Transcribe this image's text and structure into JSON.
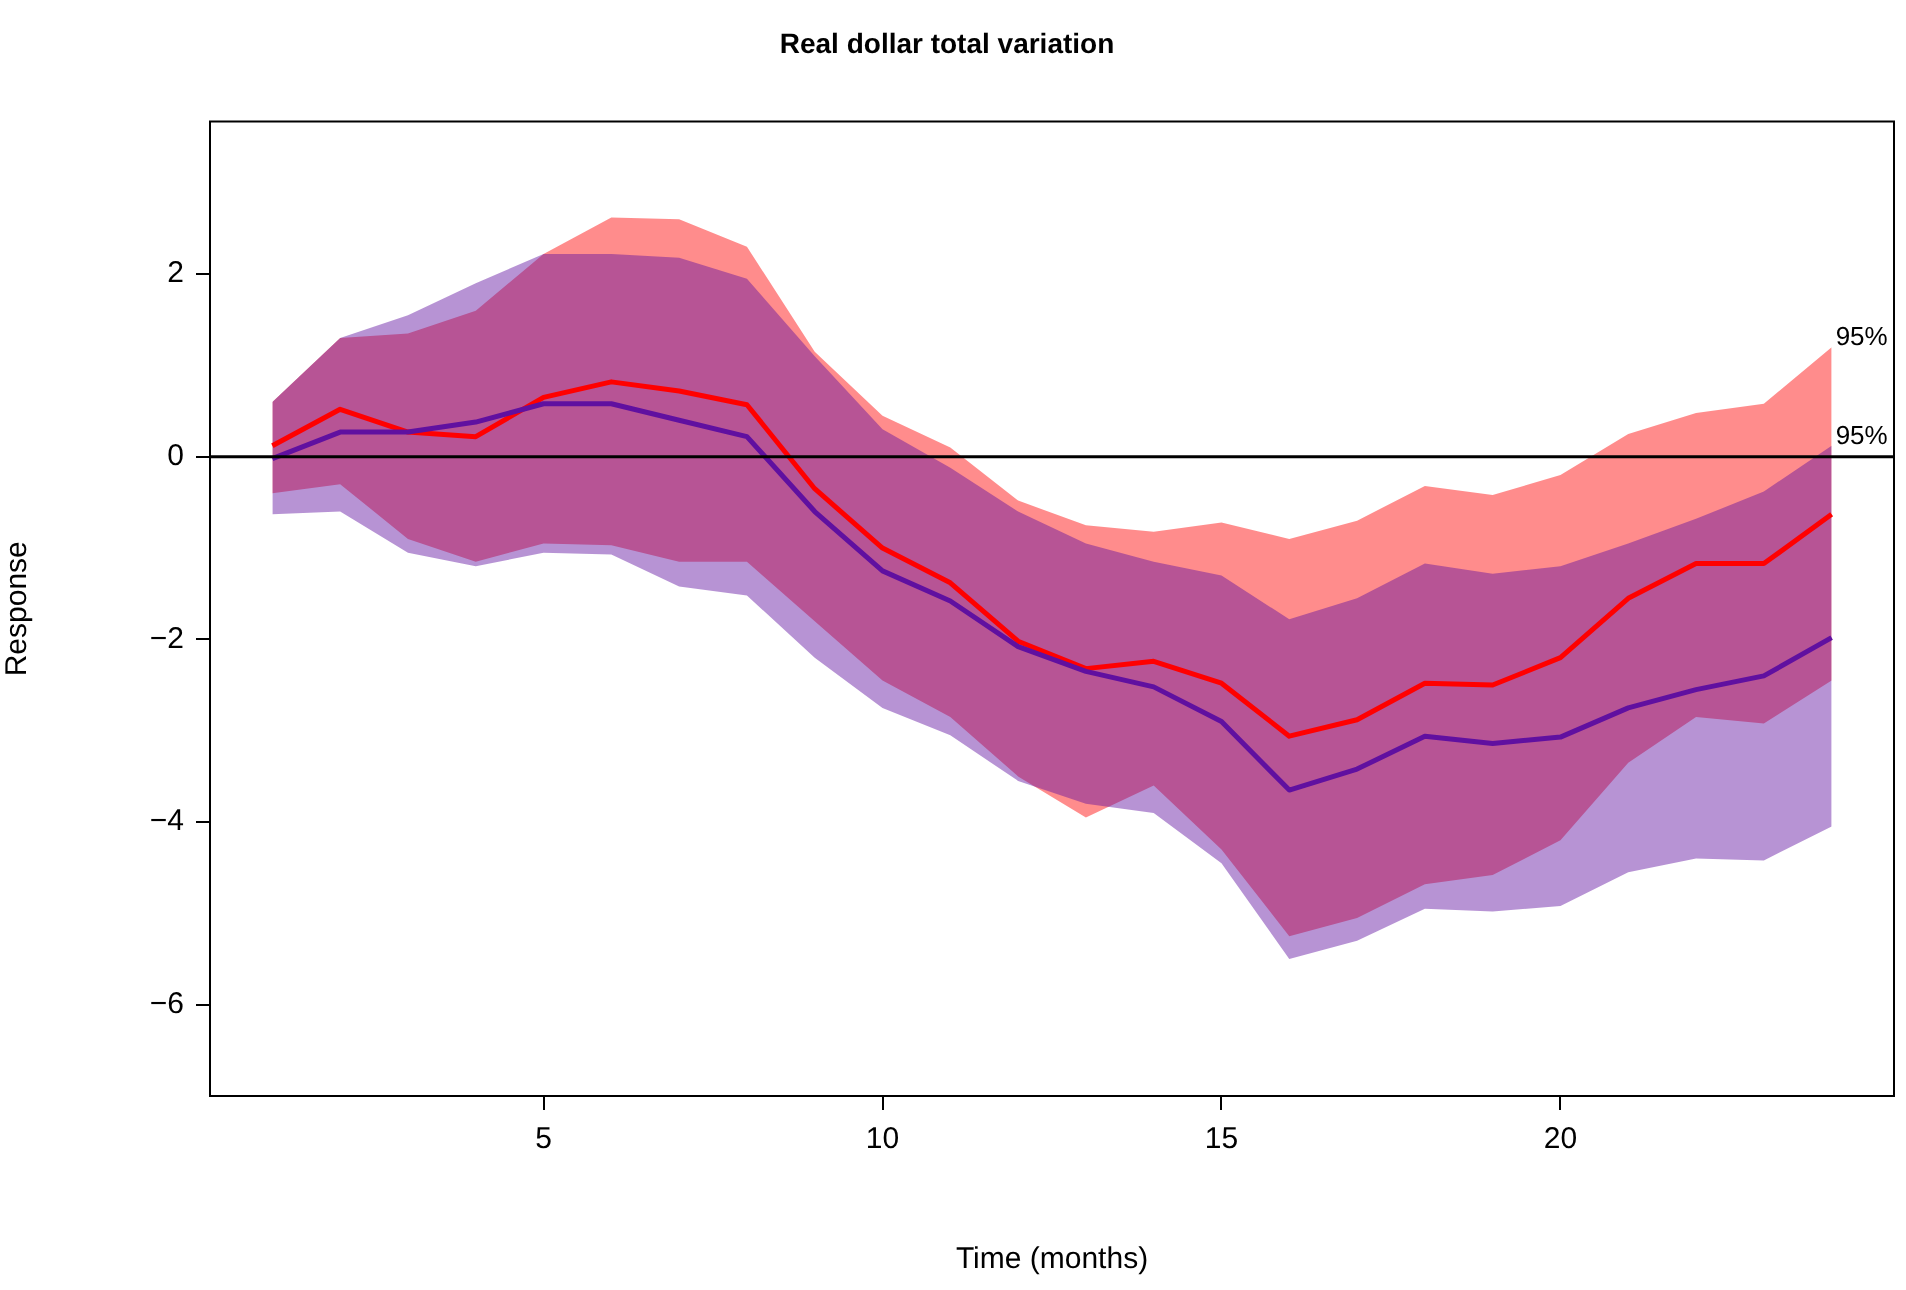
{
  "chart_data": {
    "type": "line",
    "title": "Real dollar total variation",
    "xlabel": "Time (months)",
    "ylabel": "Response",
    "x": [
      1,
      2,
      3,
      4,
      5,
      6,
      7,
      8,
      9,
      10,
      11,
      12,
      13,
      14,
      15,
      16,
      17,
      18,
      19,
      20,
      21,
      22,
      23,
      24
    ],
    "series": [
      {
        "color": "#6010a0",
        "values": [
          -0.02,
          0.27,
          0.27,
          0.38,
          0.58,
          0.58,
          0.4,
          0.22,
          -0.6,
          -1.25,
          -1.58,
          -2.08,
          -2.35,
          -2.52,
          -2.9,
          -3.65,
          -3.42,
          -3.06,
          -3.14,
          -3.07,
          -2.75,
          -2.55,
          -2.4,
          -1.98
        ],
        "lower": [
          -0.63,
          -0.6,
          -1.05,
          -1.2,
          -1.05,
          -1.07,
          -1.42,
          -1.52,
          -2.2,
          -2.75,
          -3.05,
          -3.55,
          -3.8,
          -3.9,
          -4.45,
          -5.5,
          -5.3,
          -4.95,
          -4.98,
          -4.92,
          -4.55,
          -4.4,
          -4.42,
          -4.05
        ],
        "upper": [
          0.6,
          1.3,
          1.55,
          1.9,
          2.22,
          2.22,
          2.18,
          1.95,
          1.1,
          0.3,
          -0.12,
          -0.6,
          -0.95,
          -1.15,
          -1.3,
          -1.78,
          -1.55,
          -1.17,
          -1.28,
          -1.2,
          -0.95,
          -0.68,
          -0.38,
          0.12
        ]
      },
      {
        "color": "#ff0000",
        "values": [
          0.12,
          0.52,
          0.27,
          0.22,
          0.65,
          0.82,
          0.72,
          0.57,
          -0.35,
          -1.0,
          -1.38,
          -2.02,
          -2.32,
          -2.24,
          -2.48,
          -3.06,
          -2.88,
          -2.48,
          -2.5,
          -2.2,
          -1.55,
          -1.17,
          -1.17,
          -0.63
        ],
        "lower": [
          -0.4,
          -0.3,
          -0.9,
          -1.15,
          -0.95,
          -0.97,
          -1.15,
          -1.15,
          -1.8,
          -2.45,
          -2.85,
          -3.5,
          -3.95,
          -3.6,
          -4.3,
          -5.25,
          -5.05,
          -4.68,
          -4.58,
          -4.2,
          -3.35,
          -2.85,
          -2.92,
          -2.45
        ],
        "upper": [
          0.6,
          1.3,
          1.35,
          1.6,
          2.22,
          2.62,
          2.6,
          2.3,
          1.15,
          0.45,
          0.1,
          -0.48,
          -0.75,
          -0.82,
          -0.72,
          -0.9,
          -0.7,
          -0.32,
          -0.42,
          -0.2,
          0.25,
          0.48,
          0.58,
          1.2
        ]
      }
    ],
    "xlim": [
      0.08,
      24.92
    ],
    "xticks": [
      5,
      10,
      15,
      20
    ],
    "ylim": [
      -7,
      3.67
    ],
    "yticks": [
      -6,
      -4,
      -2,
      0,
      2
    ],
    "ref_lines": [
      {
        "axis": "y",
        "value": 0,
        "color": "#000000"
      }
    ],
    "annotations": [
      {
        "text": "95%",
        "x": 24,
        "y": 1.2
      },
      {
        "text": "95%",
        "x": 24,
        "y": 0.12
      }
    ],
    "legend": false,
    "marker": "none",
    "line_style": "solid"
  }
}
